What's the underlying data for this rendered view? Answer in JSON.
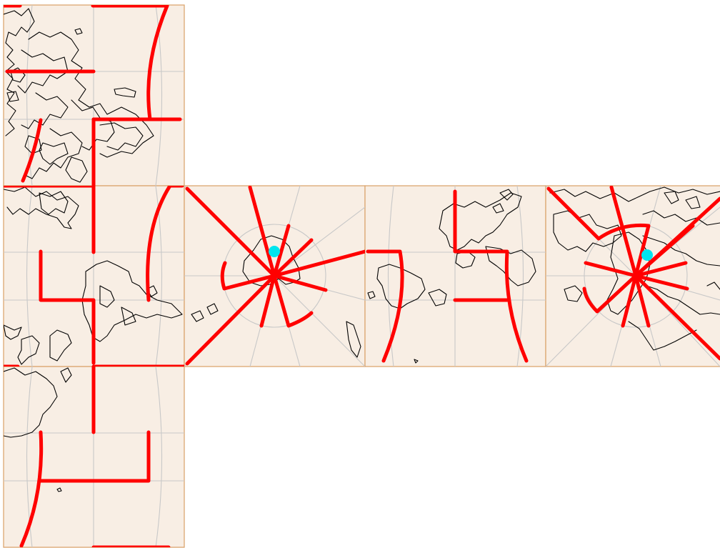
{
  "map": {
    "projection": "cube-map",
    "faces": [
      {
        "id": "face-top-left",
        "shows": "europe-asia"
      },
      {
        "id": "face-middle-left",
        "shows": "asia-africa"
      },
      {
        "id": "face-bottom-left",
        "shows": "africa-atlantic"
      },
      {
        "id": "face-antarctica",
        "shows": "south-pole"
      },
      {
        "id": "face-americas",
        "shows": "americas"
      },
      {
        "id": "face-arctic",
        "shows": "north-pole"
      }
    ],
    "colors": {
      "face_fill": "#f8eee4",
      "face_border": "#d9a066",
      "graticule": "#c8c8c8",
      "coastline": "#000000",
      "route": "#ff0000",
      "marker": "#00e5ee"
    },
    "markers": [
      {
        "name": "south-pole-marker",
        "face": "face-antarctica"
      },
      {
        "name": "north-pole-marker",
        "face": "face-arctic"
      }
    ],
    "legend": "none",
    "labels": "none"
  }
}
